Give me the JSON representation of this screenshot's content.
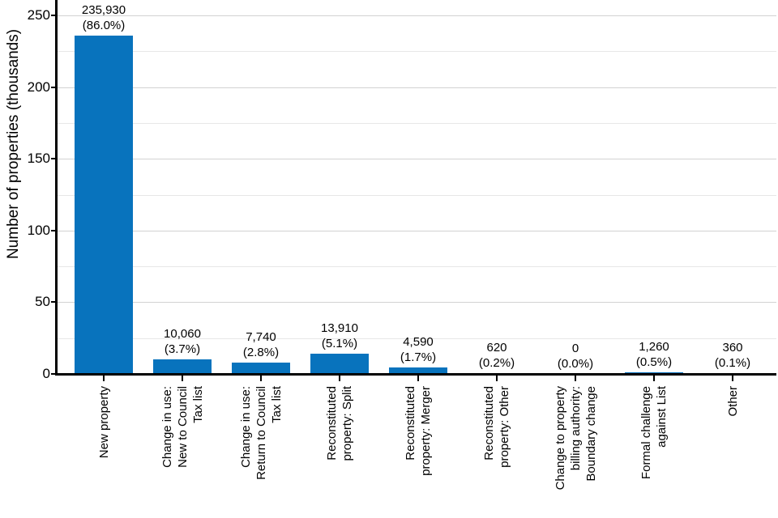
{
  "chart_data": {
    "type": "bar",
    "title": "",
    "xlabel": "",
    "ylabel": "Number of properties (thousands)",
    "ylim": [
      0,
      250
    ],
    "y_unit": "thousands",
    "y_ticks": [
      0,
      50,
      100,
      150,
      200,
      250
    ],
    "minor_gridline_step_thousands": 25,
    "grid": "horizontal",
    "legend": "none",
    "bar_color": "#0873bd",
    "categories": [
      "New property",
      "Change in use: New to Council Tax list",
      "Change in use: Return to Council Tax list",
      "Reconstituted property: Split",
      "Reconstituted property: Merger",
      "Reconstituted property: Other",
      "Change to property billing authority: Boundary change",
      "Formal challenge against List",
      "Other"
    ],
    "values": [
      235930,
      10060,
      7740,
      13910,
      4590,
      620,
      0,
      1260,
      360
    ],
    "bars": [
      {
        "lines": [
          "New property"
        ],
        "value": 235930,
        "value_label": "235,930",
        "pct_label": "(86.0%)"
      },
      {
        "lines": [
          "Change in use:",
          "New to Council",
          "Tax list"
        ],
        "value": 10060,
        "value_label": "10,060",
        "pct_label": "(3.7%)"
      },
      {
        "lines": [
          "Change in use:",
          "Return to Council",
          "Tax list"
        ],
        "value": 7740,
        "value_label": "7,740",
        "pct_label": "(2.8%)"
      },
      {
        "lines": [
          "Reconstituted",
          "property: Split"
        ],
        "value": 13910,
        "value_label": "13,910",
        "pct_label": "(5.1%)"
      },
      {
        "lines": [
          "Reconstituted",
          "property: Merger"
        ],
        "value": 4590,
        "value_label": "4,590",
        "pct_label": "(1.7%)"
      },
      {
        "lines": [
          "Reconstituted",
          "property: Other"
        ],
        "value": 620,
        "value_label": "620",
        "pct_label": "(0.2%)"
      },
      {
        "lines": [
          "Change to property",
          "billing authority:",
          "Boundary change"
        ],
        "value": 0,
        "value_label": "0",
        "pct_label": "(0.0%)"
      },
      {
        "lines": [
          "Formal challenge",
          "against List"
        ],
        "value": 1260,
        "value_label": "1,260",
        "pct_label": "(0.5%)"
      },
      {
        "lines": [
          "Other"
        ],
        "value": 360,
        "value_label": "360",
        "pct_label": "(0.1%)"
      }
    ]
  },
  "colors": {
    "bar": "#0873bd",
    "axis": "#000000",
    "gridline_major": "#d2d2d2",
    "gridline_minor": "#e7e7e7",
    "background": "#ffffff",
    "text": "#000000"
  }
}
